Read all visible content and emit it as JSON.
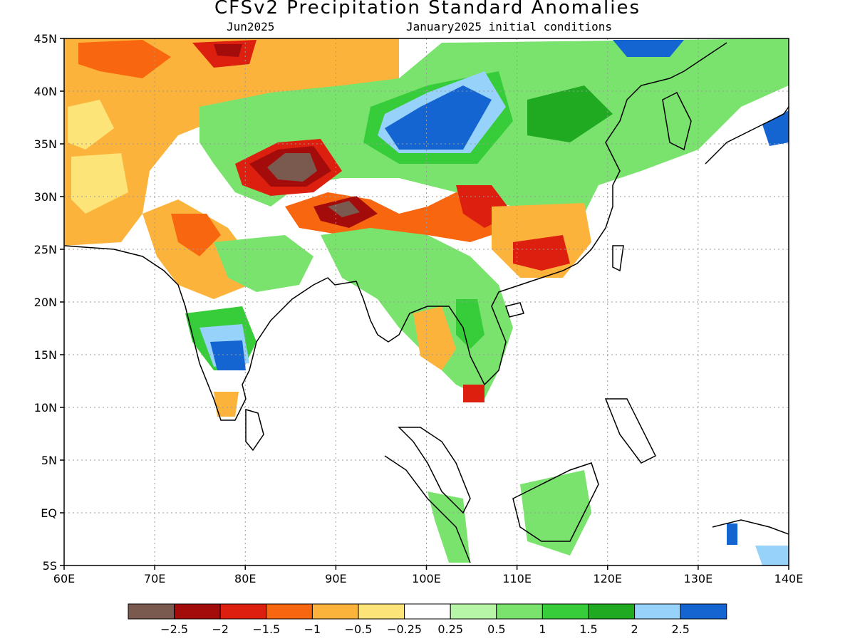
{
  "title": "CFSv2 Precipitation Standard Anomalies",
  "subtitle_left": "Jun2025",
  "subtitle_right": "January2025 initial conditions",
  "lat_ticks": [
    "45N",
    "40N",
    "35N",
    "30N",
    "25N",
    "20N",
    "15N",
    "10N",
    "5N",
    "EQ",
    "5S"
  ],
  "lon_ticks": [
    "60E",
    "70E",
    "80E",
    "90E",
    "100E",
    "110E",
    "120E",
    "130E",
    "140E"
  ],
  "colorbar": {
    "labels": [
      "−2.5",
      "−2",
      "−1.5",
      "−1",
      "−0.5",
      "−0.25",
      "0.25",
      "0.5",
      "1",
      "1.5",
      "2",
      "2.5"
    ],
    "colors": [
      "#7a5a4f",
      "#a40c0c",
      "#dc1f0e",
      "#f8660f",
      "#fcb33b",
      "#fde478",
      "#ffffff",
      "#b7f6a6",
      "#7ae36e",
      "#37cd3a",
      "#1faa21",
      "#96d2fa",
      "#1464d2"
    ]
  },
  "colors": {
    "ocean": "#ffffff",
    "coast": "#000000",
    "grid": "#9a9a9a"
  }
}
